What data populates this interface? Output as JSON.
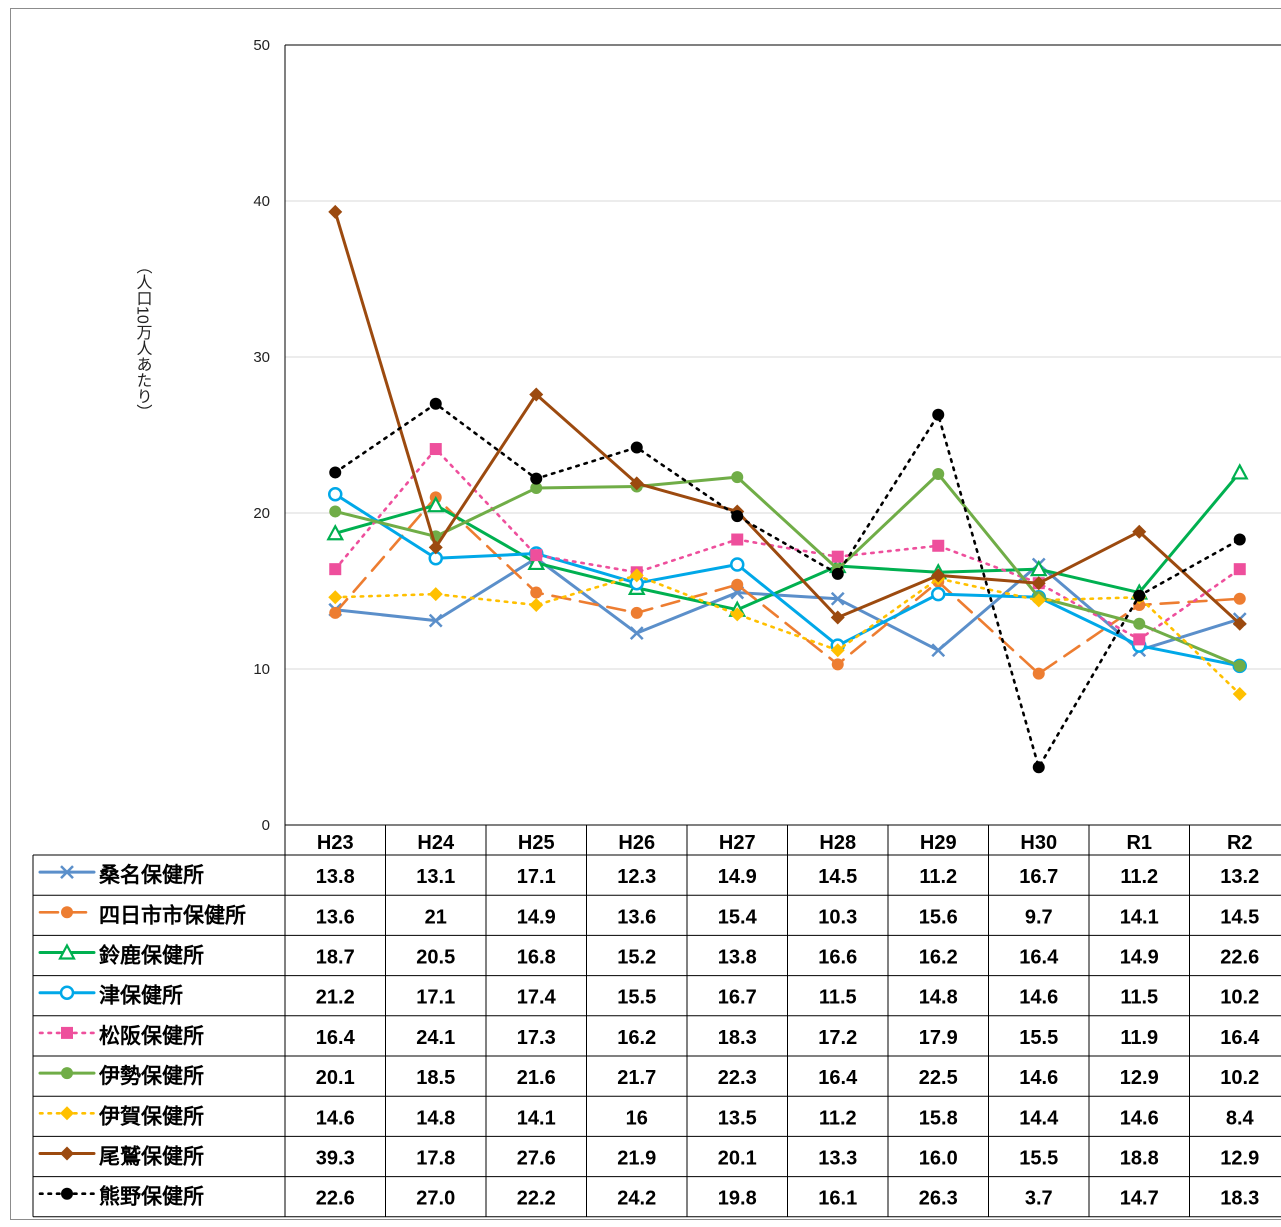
{
  "chart_data": {
    "type": "line",
    "ylabel": "（人口10万人あたり）",
    "ylim": [
      0,
      50
    ],
    "yticks": [
      0,
      10,
      20,
      30,
      40,
      50
    ],
    "grid": true,
    "legend": "table-below",
    "categories": [
      "H23",
      "H24",
      "H25",
      "H26",
      "H27",
      "H28",
      "H29",
      "H30",
      "R1",
      "R2"
    ],
    "series": [
      {
        "name": "桑名保健所",
        "color": "#5b8fca",
        "dash": "solid",
        "marker": "x",
        "values": [
          13.8,
          13.1,
          17.1,
          12.3,
          14.9,
          14.5,
          11.2,
          16.7,
          11.2,
          13.2
        ],
        "labels": [
          "13.8",
          "13.1",
          "17.1",
          "12.3",
          "14.9",
          "14.5",
          "11.2",
          "16.7",
          "11.2",
          "13.2"
        ]
      },
      {
        "name": "四日市市保健所",
        "color": "#ed7d31",
        "dash": "longdash",
        "marker": "circle",
        "values": [
          13.6,
          21,
          14.9,
          13.6,
          15.4,
          10.3,
          15.6,
          9.7,
          14.1,
          14.5
        ],
        "labels": [
          "13.6",
          "21",
          "14.9",
          "13.6",
          "15.4",
          "10.3",
          "15.6",
          "9.7",
          "14.1",
          "14.5"
        ]
      },
      {
        "name": "鈴鹿保健所",
        "color": "#00b050",
        "dash": "solid",
        "marker": "triangle-open",
        "values": [
          18.7,
          20.5,
          16.8,
          15.2,
          13.8,
          16.6,
          16.2,
          16.4,
          14.9,
          22.6
        ],
        "labels": [
          "18.7",
          "20.5",
          "16.8",
          "15.2",
          "13.8",
          "16.6",
          "16.2",
          "16.4",
          "14.9",
          "22.6"
        ]
      },
      {
        "name": "津保健所",
        "color": "#00a8e8",
        "dash": "solid",
        "marker": "circle-open",
        "values": [
          21.2,
          17.1,
          17.4,
          15.5,
          16.7,
          11.5,
          14.8,
          14.6,
          11.5,
          10.2
        ],
        "labels": [
          "21.2",
          "17.1",
          "17.4",
          "15.5",
          "16.7",
          "11.5",
          "14.8",
          "14.6",
          "11.5",
          "10.2"
        ]
      },
      {
        "name": "松阪保健所",
        "color": "#ee4f9c",
        "dash": "dotted",
        "marker": "square",
        "values": [
          16.4,
          24.1,
          17.3,
          16.2,
          18.3,
          17.2,
          17.9,
          15.5,
          11.9,
          16.4
        ],
        "labels": [
          "16.4",
          "24.1",
          "17.3",
          "16.2",
          "18.3",
          "17.2",
          "17.9",
          "15.5",
          "11.9",
          "16.4"
        ]
      },
      {
        "name": "伊勢保健所",
        "color": "#70ad47",
        "dash": "solid",
        "marker": "circle",
        "values": [
          20.1,
          18.5,
          21.6,
          21.7,
          22.3,
          16.4,
          22.5,
          14.6,
          12.9,
          10.2
        ],
        "labels": [
          "20.1",
          "18.5",
          "21.6",
          "21.7",
          "22.3",
          "16.4",
          "22.5",
          "14.6",
          "12.9",
          "10.2"
        ]
      },
      {
        "name": "伊賀保健所",
        "color": "#ffc000",
        "dash": "dotted",
        "marker": "diamond",
        "values": [
          14.6,
          14.8,
          14.1,
          16,
          13.5,
          11.2,
          15.8,
          14.4,
          14.6,
          8.4
        ],
        "labels": [
          "14.6",
          "14.8",
          "14.1",
          "16",
          "13.5",
          "11.2",
          "15.8",
          "14.4",
          "14.6",
          "8.4"
        ]
      },
      {
        "name": "尾鷲保健所",
        "color": "#9c4a0f",
        "dash": "solid",
        "marker": "diamond",
        "values": [
          39.3,
          17.8,
          27.6,
          21.9,
          20.1,
          13.3,
          16.0,
          15.5,
          18.8,
          12.9
        ],
        "labels": [
          "39.3",
          "17.8",
          "27.6",
          "21.9",
          "20.1",
          "13.3",
          "16.0",
          "15.5",
          "18.8",
          "12.9"
        ]
      },
      {
        "name": "熊野保健所",
        "color": "#000000",
        "dash": "dotted",
        "marker": "circle",
        "values": [
          22.6,
          27.0,
          22.2,
          24.2,
          19.8,
          16.1,
          26.3,
          3.7,
          14.7,
          18.3
        ],
        "labels": [
          "22.6",
          "27.0",
          "22.2",
          "24.2",
          "19.8",
          "16.1",
          "26.3",
          "3.7",
          "14.7",
          "18.3"
        ]
      }
    ]
  }
}
